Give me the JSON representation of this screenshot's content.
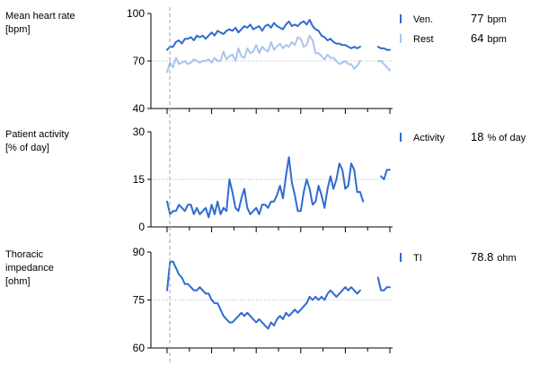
{
  "chart_data": [
    {
      "type": "line",
      "ylabel": [
        "Mean heart rate",
        "[bpm]"
      ],
      "yticks": [
        "100",
        "70",
        "40"
      ],
      "ylim": [
        40,
        100
      ],
      "grid_y": [
        70
      ],
      "x_count": 76,
      "break_after": 64,
      "series": [
        {
          "name": "Ven.",
          "color": "#2F6BD0",
          "value_text": "77",
          "unit": "bpm",
          "values": [
            77,
            79,
            79,
            82,
            83,
            81,
            84,
            84,
            85,
            83,
            86,
            85,
            86,
            84,
            86,
            88,
            86,
            89,
            88,
            87,
            89,
            90,
            89,
            91,
            88,
            90,
            92,
            91,
            93,
            90,
            91,
            92,
            89,
            92,
            93,
            91,
            94,
            92,
            91,
            90,
            93,
            95,
            92,
            93,
            92,
            94,
            95,
            93,
            96,
            92,
            90,
            89,
            86,
            85,
            83,
            84,
            82,
            81,
            81,
            80,
            80,
            79,
            78,
            79,
            78,
            79,
            null,
            null,
            null,
            null,
            null,
            79,
            78,
            78,
            77,
            77
          ],
          "width": 2
        },
        {
          "name": "Rest",
          "color": "#A9C4EC",
          "value_text": "64",
          "unit": "bpm",
          "values": [
            63,
            69,
            66,
            72,
            68,
            69,
            70,
            68,
            69,
            71,
            70,
            69,
            70,
            70,
            71,
            69,
            72,
            70,
            70,
            76,
            71,
            73,
            74,
            70,
            78,
            73,
            72,
            78,
            75,
            76,
            80,
            75,
            79,
            77,
            76,
            82,
            77,
            79,
            81,
            78,
            80,
            79,
            82,
            80,
            85,
            84,
            79,
            80,
            86,
            83,
            75,
            75,
            73,
            71,
            74,
            72,
            72,
            70,
            68,
            69,
            70,
            68,
            68,
            65,
            67,
            70,
            null,
            null,
            null,
            null,
            null,
            70,
            70,
            68,
            66,
            64
          ],
          "width": 2
        }
      ]
    },
    {
      "type": "line",
      "ylabel": [
        "Patient activity",
        "[% of day]"
      ],
      "yticks": [
        "30",
        "15",
        "0"
      ],
      "ylim": [
        0,
        30
      ],
      "grid_y": [
        15
      ],
      "x_count": 76,
      "break_after": 64,
      "series": [
        {
          "name": "Activity",
          "color": "#2F6BD0",
          "value_text": "18",
          "unit": "% of day",
          "values": [
            8,
            4,
            5,
            5,
            7,
            6,
            5,
            7,
            7,
            4,
            6,
            4,
            5,
            6,
            3,
            7,
            4,
            8,
            4,
            6,
            5,
            15,
            11,
            6,
            5,
            9,
            12,
            6,
            4,
            5,
            6,
            4,
            7,
            7,
            6,
            8,
            8,
            10,
            13,
            9,
            16,
            22,
            14,
            10,
            5,
            5,
            11,
            15,
            12,
            7,
            8,
            13,
            10,
            6,
            12,
            16,
            12,
            15,
            20,
            18,
            12,
            13,
            20,
            18,
            11,
            11,
            8,
            null,
            null,
            null,
            null,
            null,
            16,
            15,
            18,
            18
          ],
          "width": 2
        }
      ]
    },
    {
      "type": "line",
      "ylabel": [
        "Thoracic",
        "impedance",
        "[ohm]"
      ],
      "yticks": [
        "90",
        "75",
        "60"
      ],
      "ylim": [
        60,
        90
      ],
      "grid_y": [
        75
      ],
      "x_count": 76,
      "break_after": 64,
      "series": [
        {
          "name": "TI",
          "color": "#2F6BD0",
          "value_text": "78.8",
          "unit": "ohm",
          "values": [
            78,
            87,
            87,
            85,
            83,
            82,
            80,
            80,
            79,
            78,
            78,
            79,
            78,
            77,
            77,
            75,
            74,
            74,
            72,
            70,
            69,
            68,
            68,
            69,
            70,
            71,
            70,
            71,
            70,
            69,
            68,
            69,
            68,
            67,
            66,
            68,
            67,
            69,
            70,
            69,
            71,
            70,
            71,
            72,
            71,
            72,
            73,
            74,
            76,
            75,
            76,
            75,
            76,
            75,
            77,
            78,
            77,
            76,
            77,
            78,
            79,
            78,
            79,
            78,
            77,
            78,
            null,
            null,
            null,
            null,
            null,
            82,
            78,
            78,
            79,
            79
          ],
          "width": 2
        }
      ]
    }
  ]
}
